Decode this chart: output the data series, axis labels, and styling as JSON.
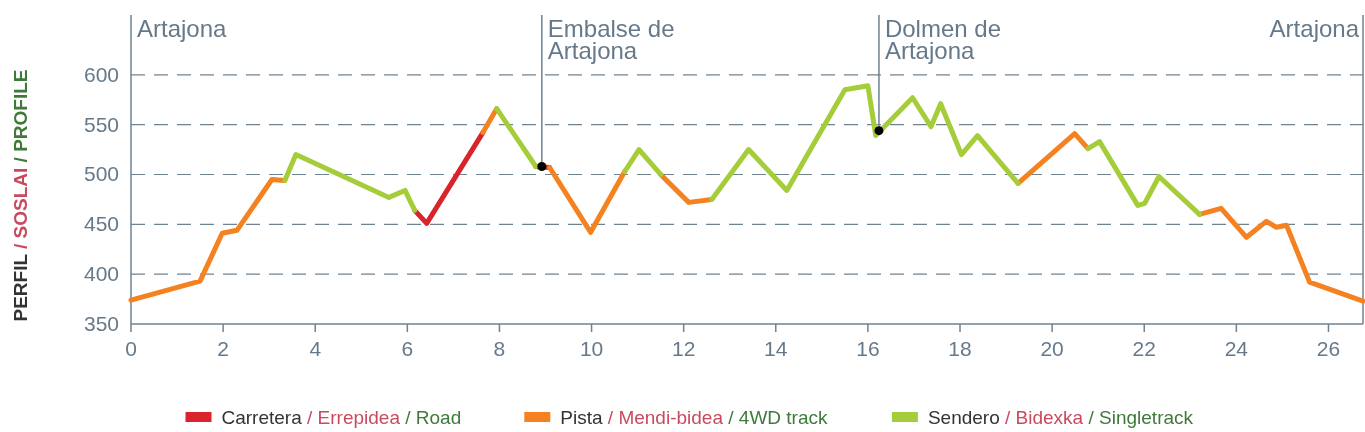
{
  "chart_data": {
    "type": "line",
    "ylabel": "PERFIL / SOSLAI / PROFILE",
    "x": [
      0,
      1.5,
      1.98,
      2.3,
      3.06,
      3.34,
      3.58,
      5.6,
      5.95,
      6.16,
      6.42,
      7.64,
      7.94,
      8.79,
      9.09,
      9.98,
      10.72,
      11.03,
      11.5,
      12.11,
      12.61,
      13.41,
      14.24,
      15.5,
      16,
      16.17,
      16.97,
      17.37,
      17.58,
      18.03,
      18.38,
      19.26,
      20.49,
      20.78,
      21.03,
      21.86,
      22.01,
      22.32,
      23.2,
      23.67,
      24.22,
      24.65,
      24.87,
      25.09,
      25.59,
      26.75
    ],
    "series": [
      {
        "name": "Carretera / Errepidea / Road",
        "color": "#d9242b",
        "values": [
          null,
          null,
          null,
          null,
          null,
          null,
          null,
          null,
          null,
          464,
          451,
          542,
          null,
          508,
          507,
          null,
          null,
          null,
          null,
          null,
          null,
          null,
          null,
          null,
          null,
          null,
          null,
          null,
          null,
          null,
          null,
          null,
          null,
          null,
          null,
          null,
          null,
          null,
          null,
          null,
          null,
          null,
          null,
          null,
          null,
          null
        ]
      },
      {
        "name": "Pista / Mendi-bidea / 4WD track",
        "color": "#f58220",
        "values": [
          374,
          393,
          441,
          444,
          495,
          494,
          null,
          null,
          null,
          null,
          null,
          542,
          566,
          null,
          507,
          442,
          503,
          null,
          500,
          472,
          475,
          null,
          null,
          null,
          null,
          null,
          null,
          null,
          null,
          null,
          null,
          491,
          541,
          526,
          null,
          null,
          null,
          null,
          460,
          466,
          437,
          453,
          447,
          449,
          392,
          373
        ]
      },
      {
        "name": "Sendero / Bidexka / Singletrack",
        "color": "#a5cd39",
        "values": [
          null,
          null,
          null,
          null,
          null,
          494,
          520,
          477,
          484,
          464,
          null,
          null,
          566,
          508,
          null,
          null,
          503,
          525,
          500,
          null,
          475,
          525,
          484,
          585,
          589,
          539,
          577,
          548,
          571,
          520,
          539,
          491,
          null,
          526,
          533,
          469,
          471,
          498,
          460,
          null,
          null,
          null,
          null,
          null,
          null,
          null
        ]
      },
      {
        "type": "scatter",
        "color": "#000000",
        "marker": "circle",
        "x": [
          8.92,
          16.24
        ],
        "values": [
          508,
          544
        ]
      }
    ],
    "annotations": [
      "Artajona"
    ],
    "ref_lines": [
      {
        "axis": "x",
        "value": 8.92,
        "label": "Embalse de Artajona"
      },
      {
        "axis": "x",
        "value": 16.24,
        "label": "Dolmen de Artajona"
      },
      {
        "axis": "x",
        "value": 26.75,
        "label": "Artajona"
      }
    ],
    "xlim": [
      0,
      26.75
    ],
    "xticks": [
      0,
      2,
      4,
      6,
      8,
      10,
      12,
      14,
      16,
      18,
      20,
      22,
      24,
      26
    ],
    "ylim": [
      350,
      660
    ],
    "yticks": [
      350,
      400,
      450,
      500,
      550,
      600
    ],
    "grid": "y",
    "legend": "bottom",
    "marker": "none",
    "line_style": "solid"
  }
}
